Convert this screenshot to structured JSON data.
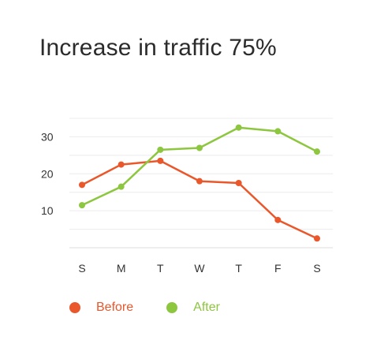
{
  "chart_data": {
    "type": "line",
    "title": "Increase in traffic 75%",
    "categories": [
      "S",
      "M",
      "T",
      "W",
      "T",
      "F",
      "S"
    ],
    "series": [
      {
        "name": "Before",
        "color": "#e9572b",
        "values": [
          17,
          22.5,
          23.5,
          18,
          17.5,
          7.5,
          2.5
        ]
      },
      {
        "name": "After",
        "color": "#8dc63f",
        "values": [
          11.5,
          16.5,
          26.5,
          27,
          32.5,
          31.5,
          26
        ]
      }
    ],
    "yticks": [
      10,
      20,
      30
    ],
    "ylim": [
      0,
      35
    ],
    "xlabel": "",
    "ylabel": "",
    "grid": true,
    "legend_position": "bottom"
  }
}
